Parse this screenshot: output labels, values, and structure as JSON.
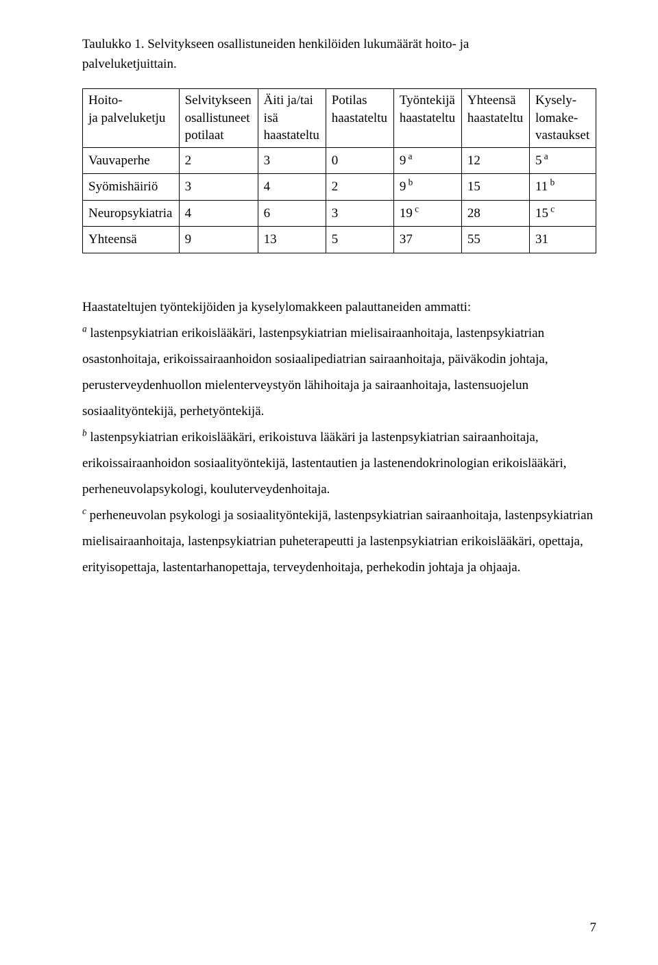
{
  "title_line1": "Taulukko 1. Selvitykseen osallistuneiden henkilöiden lukumäärät hoito- ja",
  "title_line2": "palveluketjuittain.",
  "table": {
    "headers": {
      "c1a": "Hoito-",
      "c1b": "ja palveluketju",
      "c2a": "Selvitykseen",
      "c2b": "osallistuneet",
      "c2c": "potilaat",
      "c3a": "Äiti ja/tai",
      "c3b": "isä",
      "c3c": "haastateltu",
      "c4a": "Potilas",
      "c4b": "haastateltu",
      "c5a": "Työntekijä",
      "c5b": "haastateltu",
      "c6a": "Yhteensä",
      "c6b": "haastateltu",
      "c7a": "Kysely-",
      "c7b": "lomake-",
      "c7c": "vastaukset"
    },
    "rows": [
      {
        "label": "Vauvaperhe",
        "v": [
          "2",
          "3",
          "0",
          "9",
          "12",
          "5"
        ],
        "sup": [
          "",
          "",
          "",
          "a",
          "",
          "a"
        ]
      },
      {
        "label": "Syömishäiriö",
        "v": [
          "3",
          "4",
          "2",
          "9",
          "15",
          "11"
        ],
        "sup": [
          "",
          "",
          "",
          "b",
          "",
          "b"
        ]
      },
      {
        "label": "Neuropsykiatria",
        "v": [
          "4",
          "6",
          "3",
          "19",
          "28",
          "15"
        ],
        "sup": [
          "",
          "",
          "",
          "c",
          "",
          "c"
        ]
      },
      {
        "label": "Yhteensä",
        "v": [
          "9",
          "13",
          "5",
          "37",
          "55",
          "31"
        ],
        "sup": [
          "",
          "",
          "",
          "",
          "",
          ""
        ]
      }
    ]
  },
  "body": {
    "intro": "Haastateltujen työntekijöiden ja kyselylomakkeen palauttaneiden ammatti:",
    "a_sup": "a",
    "a_text": " lastenpsykiatrian erikoislääkäri, lastenpsykiatrian mielisairaanhoitaja, lastenpsykiatrian osastonhoitaja, erikoissairaanhoidon sosiaalipediatrian sairaanhoitaja, päiväkodin johtaja, perusterveydenhuollon mielenterveystyön lähihoitaja ja sairaanhoitaja, lastensuojelun sosiaalityöntekijä, perhetyöntekijä.",
    "b_sup": "b",
    "b_text": " lastenpsykiatrian erikoislääkäri, erikoistuva lääkäri ja lastenpsykiatrian sairaanhoitaja, erikoissairaanhoidon sosiaalityöntekijä, lastentautien ja lastenendokrinologian erikoislääkäri, perheneuvolapsykologi, kouluterveydenhoitaja.",
    "c_sup": "c",
    "c_text": " perheneuvolan psykologi ja sosiaalityöntekijä, lastenpsykiatrian sairaanhoitaja, lastenpsykiatrian mielisairaanhoitaja, lastenpsykiatrian puheterapeutti ja lastenpsykiatrian erikoislääkäri, opettaja, erityisopettaja, lastentarhanopettaja, terveydenhoitaja, perhekodin johtaja ja ohjaaja."
  },
  "page_number": "7"
}
